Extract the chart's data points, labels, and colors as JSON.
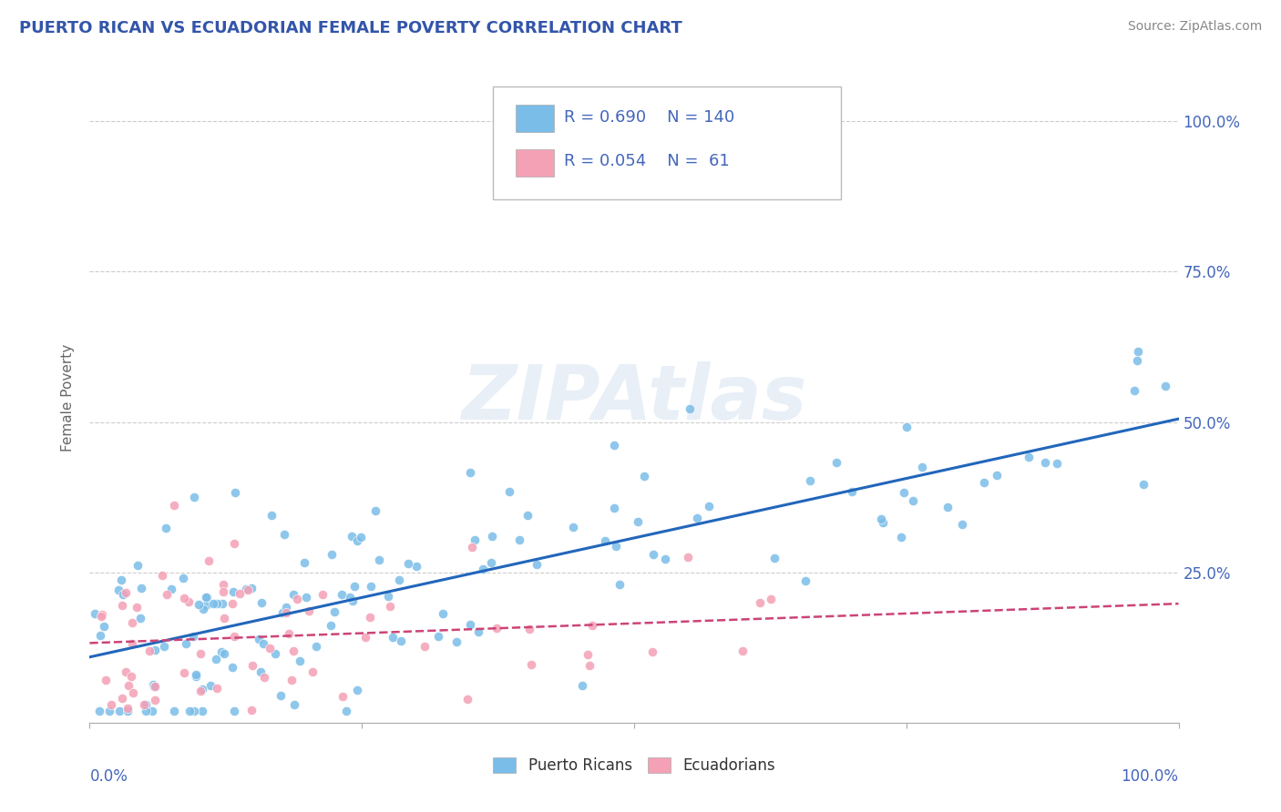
{
  "title": "PUERTO RICAN VS ECUADORIAN FEMALE POVERTY CORRELATION CHART",
  "source": "Source: ZipAtlas.com",
  "ylabel": "Female Poverty",
  "blue_color": "#7abde8",
  "pink_color": "#f4a0b5",
  "blue_line_color": "#2266bb",
  "pink_line_color": "#cc4477",
  "text_color": "#4466bb",
  "title_color": "#3355aa",
  "grid_color": "#cccccc",
  "legend_label1": "Puerto Ricans",
  "legend_label2": "Ecuadorians",
  "watermark": "ZIPAtlas",
  "blue_R": 0.69,
  "blue_N": 140,
  "pink_R": 0.054,
  "pink_N": 61
}
